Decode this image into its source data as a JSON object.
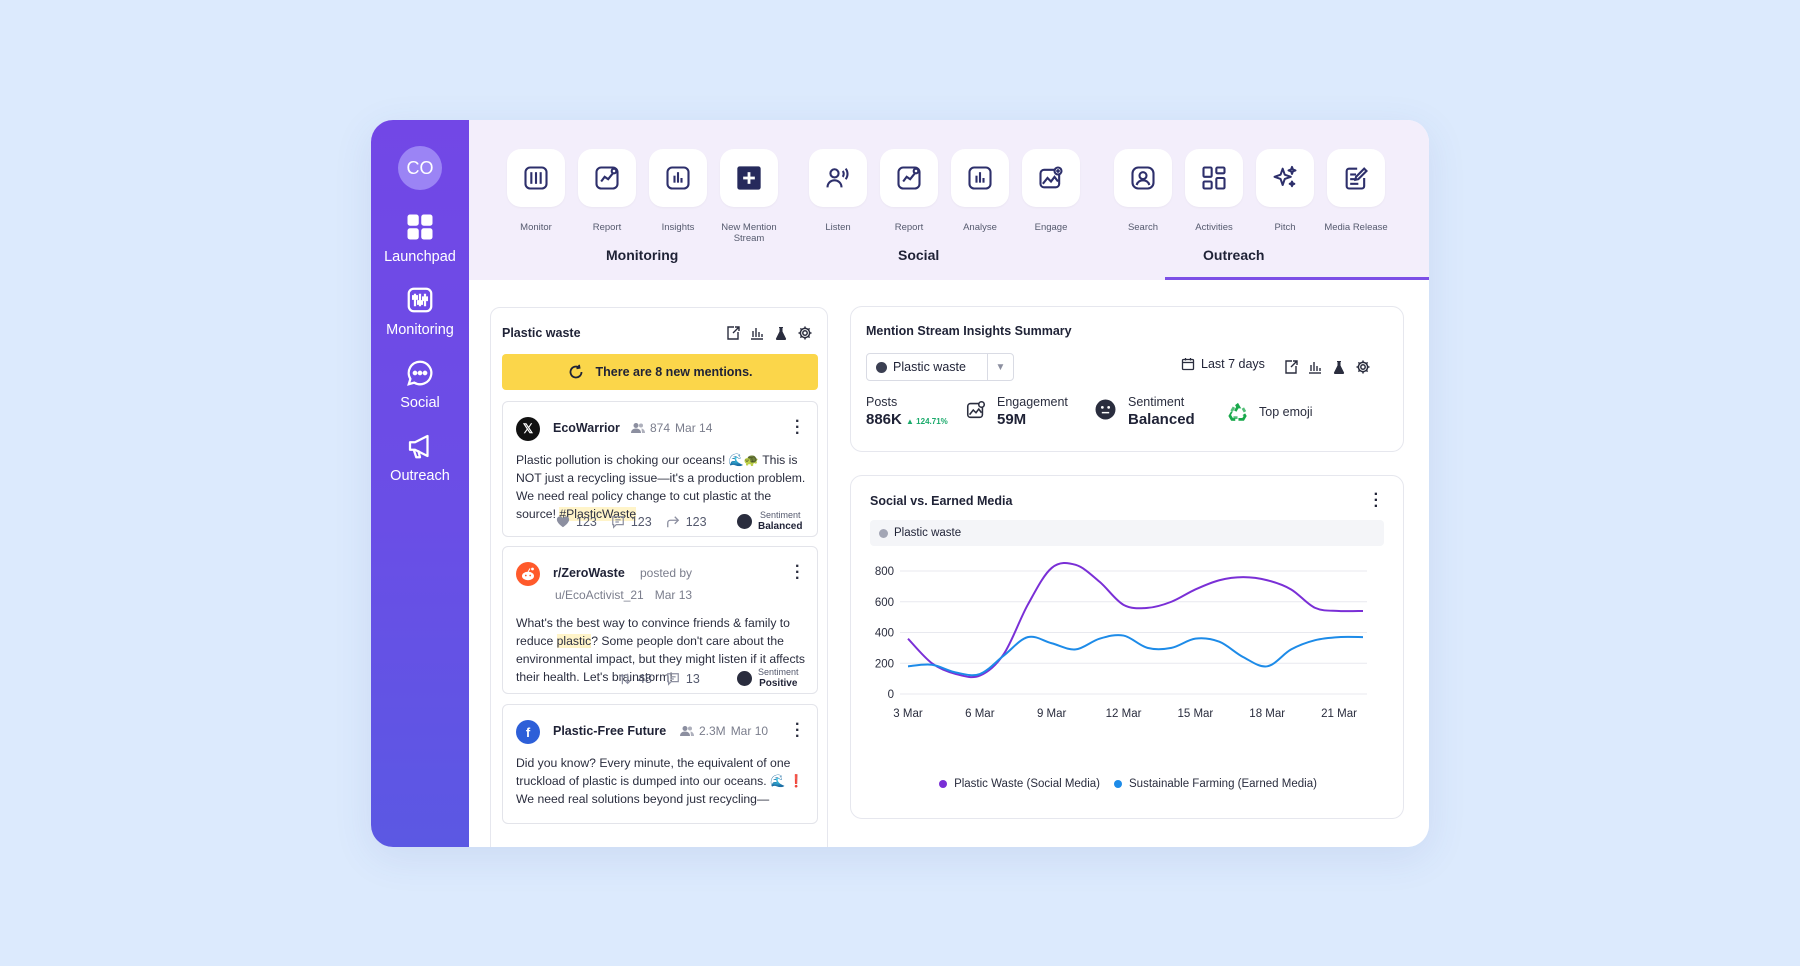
{
  "sidebar": {
    "avatar": "CO",
    "items": [
      {
        "label": "Launchpad",
        "icon": "grid-icon"
      },
      {
        "label": "Monitoring",
        "icon": "monitor-icon"
      },
      {
        "label": "Social",
        "icon": "chat-icon"
      },
      {
        "label": "Outreach",
        "icon": "megaphone-icon"
      }
    ]
  },
  "toolbar": {
    "groups": [
      {
        "title": "Monitoring",
        "tools": [
          "Monitor",
          "Report",
          "Insights",
          "New Mention Stream"
        ]
      },
      {
        "title": "Social",
        "tools": [
          "Listen",
          "Report",
          "Analyse",
          "Engage"
        ]
      },
      {
        "title": "Outreach",
        "tools": [
          "Search",
          "Activities",
          "Pitch",
          "Media Release"
        ]
      }
    ],
    "active_group": "Social"
  },
  "feed": {
    "title": "Plastic waste",
    "banner": "There are 8 new mentions.",
    "posts": [
      {
        "source": "x",
        "name": "EcoWarrior",
        "followers": "874",
        "date": "Mar 14",
        "text_1": "Plastic pollution is choking our oceans! 🌊🐢 This is NOT just a recycling issue—it's a production problem. We need real policy change to cut plastic at the source! ",
        "hashtag": "#PlasticWaste",
        "likes": "123",
        "comments": "123",
        "shares": "123",
        "sentiment_label": "Sentiment",
        "sentiment": "Balanced"
      },
      {
        "source": "reddit",
        "name": "r/ZeroWaste",
        "posted_by": "posted by",
        "user": "u/EcoActivist_21",
        "date": "Mar 13",
        "text_1": "What's the best way to convince friends & family to reduce ",
        "highlight": "plastic",
        "text_2": "? Some people don't care about the environmental impact, but they might listen if it affects their health. Let's brainstorm!",
        "votes": "48",
        "comments": "13",
        "sentiment_label": "Sentiment",
        "sentiment": "Positive"
      },
      {
        "source": "facebook",
        "name": "Plastic-Free Future",
        "followers": "2.3M",
        "date": "Mar 10",
        "text_1": "Did you know? Every minute, the equivalent of one truckload of plastic is dumped into our oceans. 🌊 ❗ We need real solutions beyond just recycling—"
      }
    ]
  },
  "summary": {
    "title": "Mention Stream Insights Summary",
    "select_value": "Plastic waste",
    "date_range": "Last 7 days",
    "posts_label": "Posts",
    "posts_value": "886K",
    "posts_delta": "124.71%",
    "engagement_label": "Engagement",
    "engagement_value": "59M",
    "sentiment_label": "Sentiment",
    "sentiment_value": "Balanced",
    "emoji_label": "Top emoji"
  },
  "chart_panel": {
    "title": "Social vs. Earned Media",
    "filter": "Plastic waste"
  },
  "chart_data": {
    "type": "line",
    "x": [
      "3 Mar",
      "4 Mar",
      "5 Mar",
      "6 Mar",
      "7 Mar",
      "8 Mar",
      "9 Mar",
      "10 Mar",
      "11 Mar",
      "12 Mar",
      "13 Mar",
      "14 Mar",
      "15 Mar",
      "16 Mar",
      "17 Mar",
      "18 Mar",
      "19 Mar",
      "20 Mar",
      "21 Mar",
      "22 Mar"
    ],
    "x_tick_labels": [
      "3 Mar",
      "6 Mar",
      "9 Mar",
      "12 Mar",
      "15 Mar",
      "18 Mar",
      "21 Mar"
    ],
    "series": [
      {
        "name": "Plastic Waste (Social Media)",
        "color": "#7a2fd6",
        "values": [
          360,
          200,
          130,
          120,
          260,
          580,
          820,
          840,
          730,
          580,
          560,
          600,
          680,
          740,
          760,
          740,
          680,
          560,
          540,
          540
        ]
      },
      {
        "name": "Sustainable Farming (Earned Media)",
        "color": "#1d8be8",
        "values": [
          180,
          190,
          140,
          130,
          250,
          370,
          330,
          290,
          360,
          380,
          300,
          300,
          360,
          340,
          240,
          180,
          290,
          350,
          370,
          370
        ]
      }
    ],
    "ylim": [
      0,
      800
    ],
    "yticks": [
      0,
      200,
      400,
      600,
      800
    ],
    "grid": true,
    "legend_position": "bottom"
  }
}
